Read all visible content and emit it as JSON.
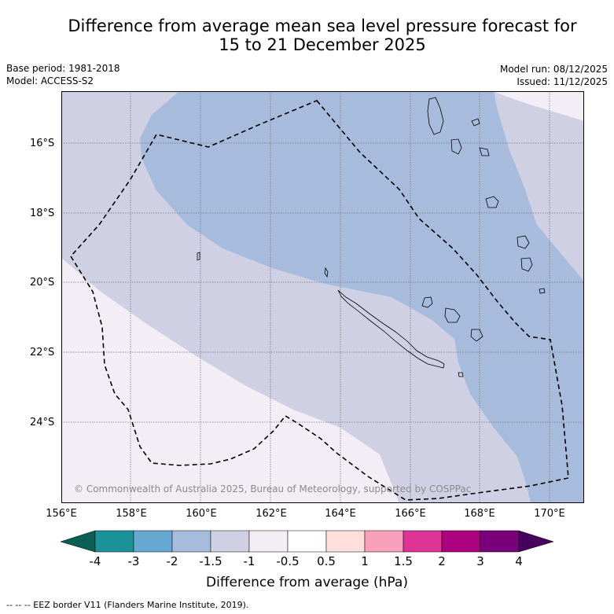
{
  "title": {
    "line1": "Difference from average mean sea level pressure forecast for",
    "line2": "15 to 21 December 2025"
  },
  "meta": {
    "base_period": "Base period: 1981-2018",
    "model": "Model: ACCESS-S2",
    "model_run": "Model run: 08/12/2025",
    "issued": "Issued: 11/12/2025"
  },
  "map": {
    "lat_labels": [
      "16°S",
      "18°S",
      "20°S",
      "22°S",
      "24°S"
    ],
    "lon_labels": [
      "156°E",
      "158°E",
      "160°E",
      "162°E",
      "164°E",
      "166°E",
      "168°E",
      "170°E"
    ],
    "copyright": "© Commonwealth of Australia 2025, Bureau of Meteorology, supported by COSPPac"
  },
  "colorbar": {
    "ticks": [
      "-4",
      "-3",
      "-2",
      "-1.5",
      "-1",
      "-0.5",
      "0.5",
      "1",
      "1.5",
      "2",
      "3",
      "4"
    ],
    "title": "Difference from average (hPa)",
    "colors": {
      "lt_-4": "#0b5e54",
      "-4_-3": "#1b9198",
      "-3_-2": "#66a8d0",
      "-2_-1.5": "#a7bbdc",
      "-1.5_-1": "#d0d0e5",
      "-1_-0.5": "#f3edf6",
      "-0.5_0.5": "#ffffff",
      "0.5_1": "#ffdedb",
      "1_1.5": "#f9a1bc",
      "1.5_2": "#dd3596",
      "2_3": "#ac017e",
      "3_4": "#79007a",
      "gt_4": "#48005f"
    }
  },
  "legend": {
    "eez": "-- -- -- EEZ border V11 (Flanders Marine Institute, 2019)."
  }
}
